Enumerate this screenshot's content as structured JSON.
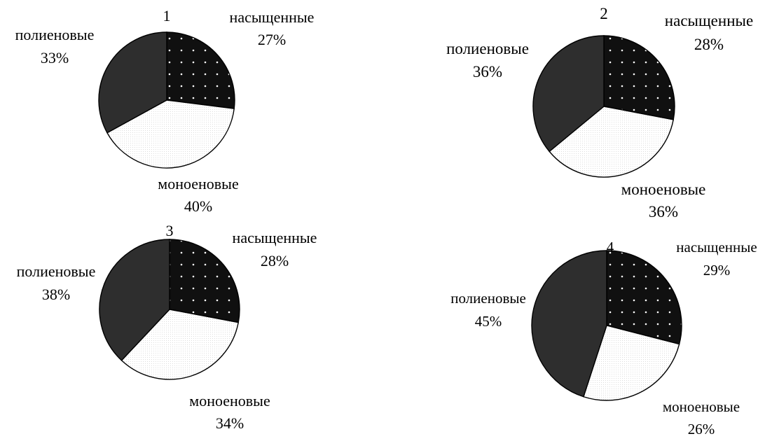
{
  "chart_data": [
    {
      "type": "pie",
      "title": "1",
      "slices": [
        {
          "name": "насыщенные",
          "value": 27,
          "label": "27%"
        },
        {
          "name": "моноеновые",
          "value": 40,
          "label": "40%"
        },
        {
          "name": "полиеновые",
          "value": 33,
          "label": "33%"
        }
      ]
    },
    {
      "type": "pie",
      "title": "2",
      "slices": [
        {
          "name": "насыщенные",
          "value": 28,
          "label": "28%"
        },
        {
          "name": "моноеновые",
          "value": 36,
          "label": "36%"
        },
        {
          "name": "полиеновые",
          "value": 36,
          "label": "36%"
        }
      ]
    },
    {
      "type": "pie",
      "title": "3",
      "slices": [
        {
          "name": "насыщенные",
          "value": 28,
          "label": "28%"
        },
        {
          "name": "моноеновые",
          "value": 34,
          "label": "34%"
        },
        {
          "name": "полиеновые",
          "value": 38,
          "label": "38%"
        }
      ]
    },
    {
      "type": "pie",
      "title": "4",
      "slices": [
        {
          "name": "насыщенные",
          "value": 29,
          "label": "29%"
        },
        {
          "name": "моноеновые",
          "value": 26,
          "label": "26%"
        },
        {
          "name": "полиеновые",
          "value": 45,
          "label": "45%"
        }
      ]
    }
  ],
  "colors": {
    "насыщенные": "#101010",
    "моноеновые": "#f2f2f2",
    "полиеновые": "#2e2e2e"
  }
}
